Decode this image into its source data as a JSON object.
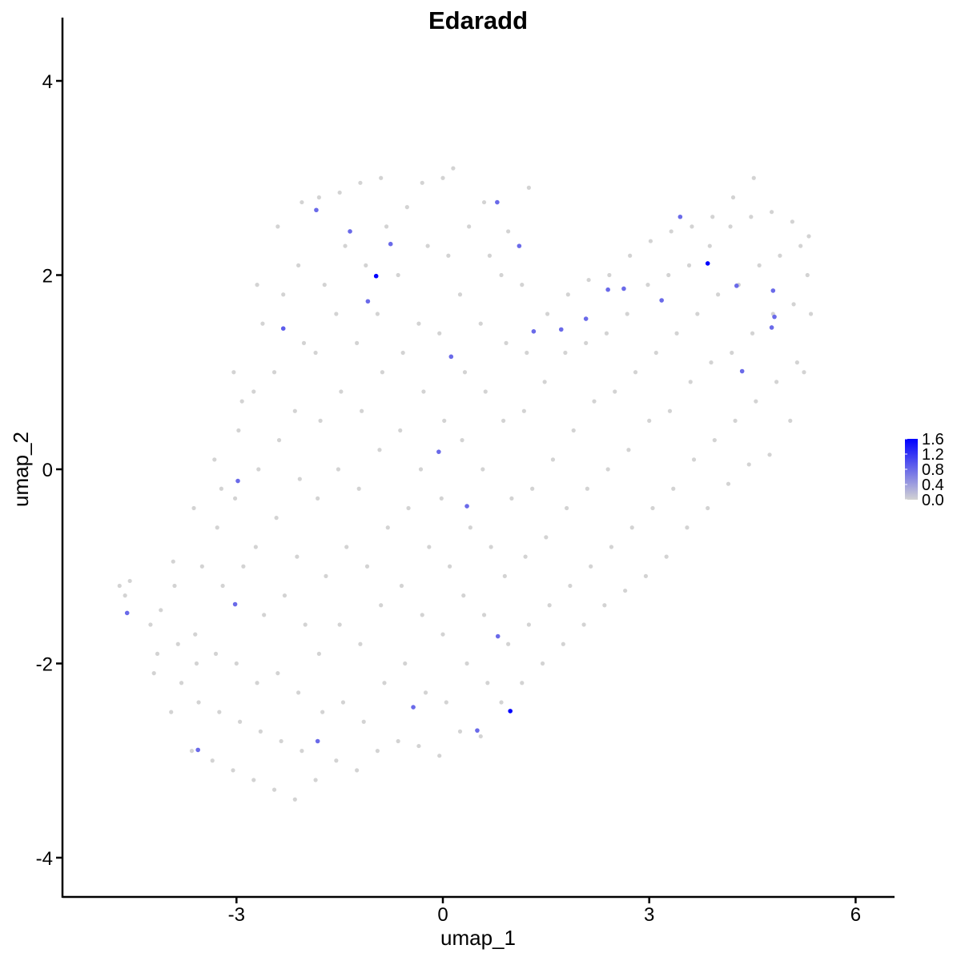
{
  "chart_data": {
    "type": "scatter",
    "title": "Edaradd",
    "xlabel": "umap_1",
    "ylabel": "umap_2",
    "xlim": [
      -5.0,
      6.5
    ],
    "ylim": [
      -4.35,
      4.4
    ],
    "xticks": [
      -3,
      0,
      3,
      6
    ],
    "yticks": [
      -4,
      -2,
      0,
      2,
      4
    ],
    "xtick_labels": [
      "-3",
      "0",
      "3",
      "6"
    ],
    "ytick_labels": [
      "-4",
      "-2",
      "0",
      "2",
      "4"
    ],
    "grid": false,
    "color_scale": {
      "low": "#d3d3d3",
      "high": "#0000ff",
      "min": 0.0,
      "max": 1.6
    },
    "legend": {
      "placement": "right",
      "labels": [
        "1.6",
        "1.2",
        "0.8",
        "0.4",
        "0.0"
      ],
      "values": [
        1.6,
        1.2,
        0.8,
        0.4,
        0.0
      ]
    },
    "points_unexpressed": [
      [
        -4.7,
        -1.2
      ],
      [
        -4.62,
        -1.3
      ],
      [
        -4.55,
        -1.15
      ],
      [
        -4.25,
        -1.6
      ],
      [
        -4.15,
        -1.9
      ],
      [
        -4.2,
        -2.1
      ],
      [
        -4.1,
        -1.45
      ],
      [
        -3.95,
        -2.5
      ],
      [
        -3.85,
        -1.8
      ],
      [
        -3.9,
        -1.2
      ],
      [
        -3.8,
        -2.2
      ],
      [
        -3.92,
        -0.95
      ],
      [
        -3.65,
        -2.9
      ],
      [
        -3.55,
        -2.4
      ],
      [
        -3.6,
        -1.7
      ],
      [
        -3.5,
        -1.0
      ],
      [
        -3.62,
        -0.4
      ],
      [
        -3.58,
        -2.0
      ],
      [
        -3.35,
        -3.0
      ],
      [
        -3.25,
        -2.5
      ],
      [
        -3.3,
        -1.9
      ],
      [
        -3.2,
        -1.2
      ],
      [
        -3.28,
        -0.6
      ],
      [
        -3.32,
        0.1
      ],
      [
        -3.22,
        -0.2
      ],
      [
        -3.05,
        -3.1
      ],
      [
        -2.95,
        -2.6
      ],
      [
        -3.0,
        -2.0
      ],
      [
        -2.9,
        -1.0
      ],
      [
        -3.02,
        -0.3
      ],
      [
        -2.97,
        0.4
      ],
      [
        -3.04,
        1.0
      ],
      [
        -2.92,
        0.7
      ],
      [
        -2.75,
        -3.2
      ],
      [
        -2.65,
        -2.7
      ],
      [
        -2.7,
        -2.2
      ],
      [
        -2.6,
        -1.5
      ],
      [
        -2.72,
        -0.8
      ],
      [
        -2.68,
        0.0
      ],
      [
        -2.75,
        0.8
      ],
      [
        -2.62,
        1.5
      ],
      [
        -2.7,
        1.9
      ],
      [
        -2.45,
        -3.3
      ],
      [
        -2.35,
        -2.8
      ],
      [
        -2.4,
        -2.1
      ],
      [
        -2.3,
        -1.3
      ],
      [
        -2.42,
        -0.5
      ],
      [
        -2.38,
        0.3
      ],
      [
        -2.45,
        1.0
      ],
      [
        -2.32,
        1.8
      ],
      [
        -2.4,
        2.5
      ],
      [
        -2.15,
        -3.4
      ],
      [
        -2.05,
        -2.9
      ],
      [
        -2.1,
        -2.3
      ],
      [
        -2.0,
        -1.6
      ],
      [
        -2.12,
        -0.9
      ],
      [
        -2.08,
        -0.1
      ],
      [
        -2.15,
        0.6
      ],
      [
        -2.02,
        1.3
      ],
      [
        -2.1,
        2.1
      ],
      [
        -2.05,
        2.75
      ],
      [
        -1.85,
        -3.2
      ],
      [
        -1.75,
        -2.5
      ],
      [
        -1.8,
        -1.9
      ],
      [
        -1.7,
        -1.1
      ],
      [
        -1.82,
        -0.3
      ],
      [
        -1.78,
        0.5
      ],
      [
        -1.85,
        1.2
      ],
      [
        -1.72,
        1.9
      ],
      [
        -1.8,
        2.8
      ],
      [
        -1.55,
        -3.0
      ],
      [
        -1.45,
        -2.4
      ],
      [
        -1.5,
        -1.6
      ],
      [
        -1.4,
        -0.8
      ],
      [
        -1.52,
        0.0
      ],
      [
        -1.48,
        0.8
      ],
      [
        -1.55,
        1.6
      ],
      [
        -1.42,
        2.3
      ],
      [
        -1.5,
        2.85
      ],
      [
        -1.25,
        -3.1
      ],
      [
        -1.15,
        -2.6
      ],
      [
        -1.2,
        -1.8
      ],
      [
        -1.1,
        -1.0
      ],
      [
        -1.22,
        -0.2
      ],
      [
        -1.18,
        0.6
      ],
      [
        -1.25,
        1.3
      ],
      [
        -1.12,
        2.1
      ],
      [
        -1.2,
        2.95
      ],
      [
        -0.95,
        -2.9
      ],
      [
        -0.85,
        -2.2
      ],
      [
        -0.9,
        -1.4
      ],
      [
        -0.8,
        -0.6
      ],
      [
        -0.92,
        0.2
      ],
      [
        -0.88,
        1.0
      ],
      [
        -0.95,
        1.6
      ],
      [
        -0.82,
        2.5
      ],
      [
        -0.9,
        3.0
      ],
      [
        -0.65,
        -2.8
      ],
      [
        -0.55,
        -2.0
      ],
      [
        -0.6,
        -1.2
      ],
      [
        -0.5,
        -0.4
      ],
      [
        -0.62,
        0.4
      ],
      [
        -0.58,
        1.2
      ],
      [
        -0.65,
        2.0
      ],
      [
        -0.52,
        2.7
      ],
      [
        -0.35,
        -2.85
      ],
      [
        -0.25,
        -2.3
      ],
      [
        -0.3,
        -1.5
      ],
      [
        -0.2,
        -0.8
      ],
      [
        -0.32,
        0.0
      ],
      [
        -0.28,
        0.8
      ],
      [
        -0.35,
        1.5
      ],
      [
        -0.22,
        2.3
      ],
      [
        -0.3,
        2.95
      ],
      [
        -0.05,
        -2.95
      ],
      [
        0.05,
        -2.4
      ],
      [
        0.0,
        -1.7
      ],
      [
        0.1,
        -1.0
      ],
      [
        -0.02,
        -0.3
      ],
      [
        0.02,
        0.5
      ],
      [
        -0.05,
        1.4
      ],
      [
        0.08,
        2.2
      ],
      [
        0.0,
        3.0
      ],
      [
        0.15,
        3.1
      ],
      [
        0.25,
        -2.7
      ],
      [
        0.35,
        -2.0
      ],
      [
        0.3,
        -1.3
      ],
      [
        0.4,
        -0.6
      ],
      [
        0.28,
        0.3
      ],
      [
        0.32,
        1.0
      ],
      [
        0.25,
        1.8
      ],
      [
        0.38,
        2.5
      ],
      [
        0.55,
        -2.75
      ],
      [
        0.65,
        -2.2
      ],
      [
        0.6,
        -1.5
      ],
      [
        0.7,
        -0.8
      ],
      [
        0.58,
        0.0
      ],
      [
        0.62,
        0.8
      ],
      [
        0.55,
        1.5
      ],
      [
        0.68,
        2.2
      ],
      [
        0.6,
        2.75
      ],
      [
        0.85,
        -2.4
      ],
      [
        0.95,
        -1.8
      ],
      [
        0.9,
        -1.1
      ],
      [
        1.0,
        -0.3
      ],
      [
        0.88,
        0.5
      ],
      [
        0.92,
        1.3
      ],
      [
        0.85,
        2.0
      ],
      [
        0.95,
        2.45
      ],
      [
        1.15,
        -2.2
      ],
      [
        1.25,
        -1.6
      ],
      [
        1.2,
        -0.9
      ],
      [
        1.3,
        -0.2
      ],
      [
        1.18,
        0.6
      ],
      [
        1.22,
        1.2
      ],
      [
        1.15,
        1.9
      ],
      [
        1.25,
        2.9
      ],
      [
        1.45,
        -2.0
      ],
      [
        1.55,
        -1.4
      ],
      [
        1.5,
        -0.7
      ],
      [
        1.6,
        0.1
      ],
      [
        1.48,
        0.9
      ],
      [
        1.52,
        1.6
      ],
      [
        1.75,
        -1.8
      ],
      [
        1.85,
        -1.2
      ],
      [
        1.8,
        -0.4
      ],
      [
        1.9,
        0.4
      ],
      [
        1.78,
        1.2
      ],
      [
        1.82,
        1.8
      ],
      [
        2.05,
        -1.6
      ],
      [
        2.15,
        -1.0
      ],
      [
        2.1,
        -0.2
      ],
      [
        2.2,
        0.7
      ],
      [
        2.08,
        1.3
      ],
      [
        2.12,
        1.95
      ],
      [
        2.35,
        -1.4
      ],
      [
        2.45,
        -0.8
      ],
      [
        2.4,
        0.0
      ],
      [
        2.5,
        0.8
      ],
      [
        2.38,
        1.4
      ],
      [
        2.42,
        2.0
      ],
      [
        2.65,
        -1.25
      ],
      [
        2.75,
        -0.6
      ],
      [
        2.7,
        0.2
      ],
      [
        2.8,
        1.0
      ],
      [
        2.68,
        1.6
      ],
      [
        2.72,
        2.2
      ],
      [
        2.95,
        -1.1
      ],
      [
        3.05,
        -0.4
      ],
      [
        3.0,
        0.5
      ],
      [
        3.1,
        1.2
      ],
      [
        2.98,
        1.9
      ],
      [
        3.02,
        2.35
      ],
      [
        3.25,
        -0.9
      ],
      [
        3.35,
        -0.2
      ],
      [
        3.3,
        0.6
      ],
      [
        3.4,
        1.4
      ],
      [
        3.28,
        2.0
      ],
      [
        3.32,
        2.45
      ],
      [
        3.55,
        -0.6
      ],
      [
        3.65,
        0.1
      ],
      [
        3.6,
        0.9
      ],
      [
        3.7,
        1.6
      ],
      [
        3.58,
        2.1
      ],
      [
        3.62,
        2.5
      ],
      [
        3.85,
        -0.4
      ],
      [
        3.95,
        0.3
      ],
      [
        3.9,
        1.1
      ],
      [
        4.0,
        1.8
      ],
      [
        3.88,
        2.3
      ],
      [
        3.92,
        2.6
      ],
      [
        4.15,
        -0.15
      ],
      [
        4.25,
        0.5
      ],
      [
        4.2,
        1.2
      ],
      [
        4.3,
        1.9
      ],
      [
        4.18,
        2.5
      ],
      [
        4.22,
        2.8
      ],
      [
        4.45,
        0.05
      ],
      [
        4.55,
        0.7
      ],
      [
        4.5,
        1.4
      ],
      [
        4.6,
        2.1
      ],
      [
        4.48,
        2.6
      ],
      [
        4.52,
        3.0
      ],
      [
        4.75,
        0.15
      ],
      [
        4.85,
        0.9
      ],
      [
        4.8,
        1.6
      ],
      [
        4.9,
        2.2
      ],
      [
        4.78,
        2.65
      ],
      [
        5.05,
        0.5
      ],
      [
        5.15,
        1.1
      ],
      [
        5.1,
        1.7
      ],
      [
        5.2,
        2.3
      ],
      [
        5.08,
        2.55
      ],
      [
        5.25,
        1.0
      ],
      [
        5.35,
        1.6
      ],
      [
        5.3,
        2.0
      ],
      [
        5.32,
        2.4
      ]
    ],
    "points_expressed": [
      [
        -0.97,
        1.99,
        1.6
      ],
      [
        3.85,
        2.12,
        1.6
      ],
      [
        0.98,
        -2.49,
        1.6
      ],
      [
        -1.84,
        2.67,
        0.8
      ],
      [
        -1.35,
        2.45,
        0.8
      ],
      [
        -0.76,
        2.32,
        0.8
      ],
      [
        0.79,
        2.75,
        0.8
      ],
      [
        1.11,
        2.3,
        0.8
      ],
      [
        -1.09,
        1.73,
        0.8
      ],
      [
        -2.32,
        1.45,
        0.9
      ],
      [
        0.12,
        1.16,
        0.8
      ],
      [
        1.32,
        1.42,
        0.8
      ],
      [
        1.72,
        1.44,
        0.8
      ],
      [
        2.08,
        1.55,
        0.8
      ],
      [
        2.4,
        1.85,
        0.8
      ],
      [
        2.63,
        1.86,
        0.8
      ],
      [
        3.18,
        1.74,
        0.8
      ],
      [
        3.45,
        2.6,
        0.8
      ],
      [
        4.27,
        1.89,
        0.8
      ],
      [
        4.8,
        1.84,
        0.8
      ],
      [
        4.82,
        1.57,
        0.8
      ],
      [
        4.78,
        1.46,
        0.8
      ],
      [
        4.35,
        1.01,
        0.8
      ],
      [
        -0.06,
        0.18,
        0.8
      ],
      [
        0.35,
        -0.38,
        0.8
      ],
      [
        -2.98,
        -0.12,
        0.8
      ],
      [
        -3.02,
        -1.39,
        0.8
      ],
      [
        -4.59,
        -1.48,
        0.8
      ],
      [
        0.8,
        -1.72,
        0.8
      ],
      [
        -0.43,
        -2.45,
        0.8
      ],
      [
        0.5,
        -2.69,
        0.8
      ],
      [
        -1.82,
        -2.8,
        0.8
      ],
      [
        -3.56,
        -2.89,
        0.8
      ]
    ]
  }
}
